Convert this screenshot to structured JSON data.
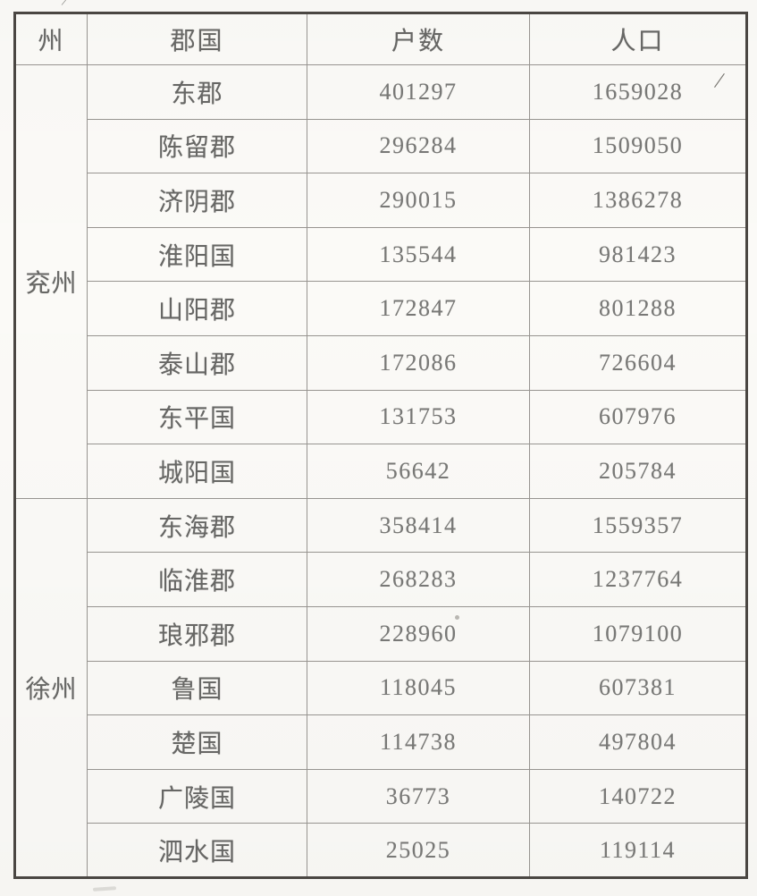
{
  "colors": {
    "paper": "#fbfaf7",
    "line": "#979490",
    "border": "#4a4642",
    "text": "#676765",
    "num": "#787876"
  },
  "artifacts": {
    "slash_top": "/",
    "slash_row1": "/"
  },
  "table": {
    "header": {
      "state": "州",
      "region": "郡国",
      "households": "户数",
      "population": "人口"
    },
    "sections": [
      {
        "state": "兖州",
        "rows": [
          {
            "region": "东郡",
            "households": "401297",
            "population": "1659028"
          },
          {
            "region": "陈留郡",
            "households": "296284",
            "population": "1509050"
          },
          {
            "region": "济阴郡",
            "households": "290015",
            "population": "1386278"
          },
          {
            "region": "淮阳国",
            "households": "135544",
            "population": "981423"
          },
          {
            "region": "山阳郡",
            "households": "172847",
            "population": "801288"
          },
          {
            "region": "泰山郡",
            "households": "172086",
            "population": "726604"
          },
          {
            "region": "东平国",
            "households": "131753",
            "population": "607976"
          },
          {
            "region": "城阳国",
            "households": "56642",
            "population": "205784"
          }
        ]
      },
      {
        "state": "徐州",
        "rows": [
          {
            "region": "东海郡",
            "households": "358414",
            "population": "1559357"
          },
          {
            "region": "临淮郡",
            "households": "268283",
            "population": "1237764"
          },
          {
            "region": "琅邪郡",
            "households": "228960",
            "population": "1079100"
          },
          {
            "region": "鲁国",
            "households": "118045",
            "population": "607381"
          },
          {
            "region": "楚国",
            "households": "114738",
            "population": "497804"
          },
          {
            "region": "广陵国",
            "households": "36773",
            "population": "140722"
          },
          {
            "region": "泗水国",
            "households": "25025",
            "population": "119114"
          }
        ]
      }
    ]
  }
}
